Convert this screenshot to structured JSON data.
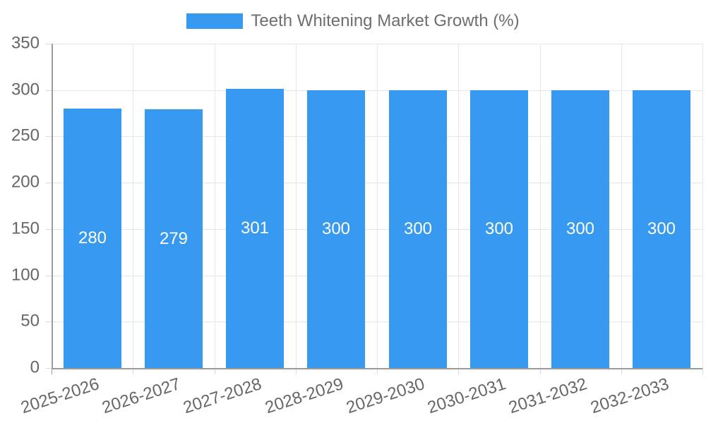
{
  "chart_data": {
    "type": "bar",
    "title": "Teeth Whitening Market Growth (%)",
    "categories": [
      "2025-2026",
      "2026-2027",
      "2027-2028",
      "2028-2029",
      "2029-2030",
      "2030-2031",
      "2031-2032",
      "2032-2033"
    ],
    "values": [
      280,
      279,
      301,
      300,
      300,
      300,
      300,
      300
    ],
    "xlabel": "",
    "ylabel": "",
    "ylim": [
      0,
      350
    ],
    "ytick_step": 50,
    "grid": true,
    "legend_position": "top-center",
    "bar_value_labels_shown": true,
    "colors": {
      "bar": "#3899f0",
      "axis_line": "#9b9b9b",
      "gridline": "#e6e6e6",
      "tick": "#dadada",
      "axis_text": "#666666",
      "value_text": "#ffffff",
      "legend_text": "#6e6e6e"
    }
  }
}
